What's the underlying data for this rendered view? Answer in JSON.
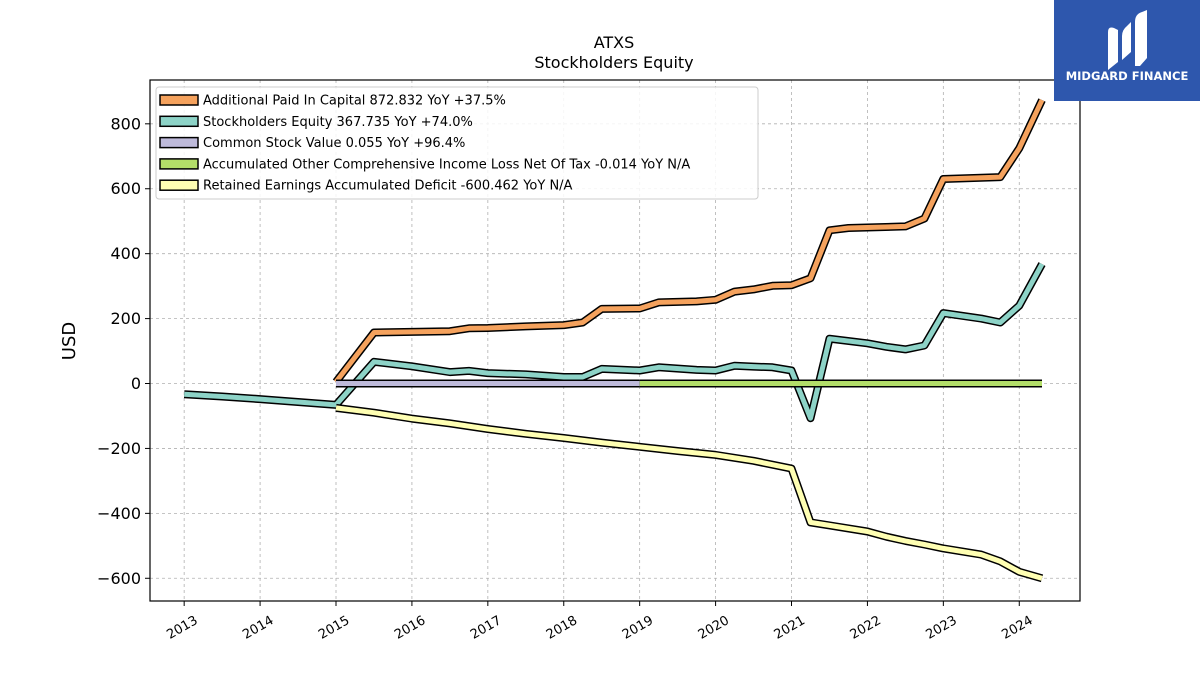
{
  "chart_data": {
    "type": "line",
    "title": "ATXS",
    "subtitle": "Stockholders  Equity",
    "ylabel": "USD",
    "xlabel": "",
    "xlim": [
      2012.55,
      2024.8
    ],
    "ylim": [
      -670,
      935
    ],
    "yticks": [
      -600,
      -400,
      -200,
      0,
      200,
      400,
      600,
      800
    ],
    "ytick_labels": [
      "−600",
      "−400",
      "−200",
      "0",
      "200",
      "400",
      "600",
      "800"
    ],
    "xticks": [
      2013,
      2014,
      2015,
      2016,
      2017,
      2018,
      2019,
      2020,
      2021,
      2022,
      2023,
      2024
    ],
    "xtick_labels": [
      "2013",
      "2014",
      "2015",
      "2016",
      "2017",
      "2018",
      "2019",
      "2020",
      "2021",
      "2022",
      "2023",
      "2024"
    ],
    "grid": true,
    "legend_position": "top-left",
    "series": [
      {
        "name": "Additional Paid In Capital  872.832 YoY +37.5%",
        "color": "#f5a25d",
        "points": [
          [
            2015.0,
            5
          ],
          [
            2015.5,
            157
          ],
          [
            2016.5,
            161
          ],
          [
            2016.75,
            170
          ],
          [
            2017.0,
            171
          ],
          [
            2017.5,
            176
          ],
          [
            2018.0,
            180
          ],
          [
            2018.25,
            188
          ],
          [
            2018.5,
            230
          ],
          [
            2019.0,
            231
          ],
          [
            2019.25,
            250
          ],
          [
            2019.75,
            253
          ],
          [
            2020.0,
            258
          ],
          [
            2020.25,
            283
          ],
          [
            2020.5,
            290
          ],
          [
            2020.75,
            301
          ],
          [
            2021.0,
            303
          ],
          [
            2021.25,
            324
          ],
          [
            2021.5,
            472
          ],
          [
            2021.75,
            479
          ],
          [
            2022.5,
            484
          ],
          [
            2022.75,
            508
          ],
          [
            2023.0,
            630
          ],
          [
            2023.75,
            636
          ],
          [
            2024.0,
            725
          ],
          [
            2024.3,
            873
          ]
        ]
      },
      {
        "name": "Stockholders Equity  367.735 YoY +74.0%",
        "color": "#8dd3c7",
        "points": [
          [
            2013.0,
            -33
          ],
          [
            2013.5,
            -40
          ],
          [
            2014.0,
            -48
          ],
          [
            2014.5,
            -57
          ],
          [
            2015.0,
            -66
          ],
          [
            2015.5,
            67
          ],
          [
            2016.0,
            53
          ],
          [
            2016.5,
            35
          ],
          [
            2016.75,
            39
          ],
          [
            2017.0,
            32
          ],
          [
            2017.5,
            28
          ],
          [
            2018.0,
            20
          ],
          [
            2018.25,
            20
          ],
          [
            2018.5,
            45
          ],
          [
            2019.0,
            40
          ],
          [
            2019.25,
            50
          ],
          [
            2019.75,
            42
          ],
          [
            2020.0,
            40
          ],
          [
            2020.25,
            55
          ],
          [
            2020.5,
            52
          ],
          [
            2020.75,
            50
          ],
          [
            2021.0,
            40
          ],
          [
            2021.25,
            -107
          ],
          [
            2021.5,
            138
          ],
          [
            2022.0,
            124
          ],
          [
            2022.25,
            113
          ],
          [
            2022.5,
            105
          ],
          [
            2022.75,
            117
          ],
          [
            2023.0,
            217
          ],
          [
            2023.5,
            200
          ],
          [
            2023.75,
            188
          ],
          [
            2024.0,
            240
          ],
          [
            2024.3,
            368
          ]
        ]
      },
      {
        "name": "Common Stock Value  0.055 YoY +96.4%",
        "color": "#bebada",
        "points": [
          [
            2015.0,
            0
          ],
          [
            2019.0,
            0
          ]
        ]
      },
      {
        "name": "Accumulated Other Comprehensive Income Loss Net Of Tax  -0.014 YoY N/A",
        "color": "#b3de69",
        "points": [
          [
            2019.0,
            0
          ],
          [
            2024.3,
            0
          ]
        ]
      },
      {
        "name": "Retained Earnings Accumulated Deficit  -600.462 YoY N/A",
        "color": "#ffffb3",
        "points": [
          [
            2015.0,
            -75
          ],
          [
            2015.5,
            -90
          ],
          [
            2016.0,
            -108
          ],
          [
            2016.5,
            -123
          ],
          [
            2017.0,
            -140
          ],
          [
            2017.5,
            -155
          ],
          [
            2018.0,
            -168
          ],
          [
            2018.5,
            -182
          ],
          [
            2019.0,
            -195
          ],
          [
            2019.5,
            -208
          ],
          [
            2020.0,
            -220
          ],
          [
            2020.5,
            -238
          ],
          [
            2021.0,
            -262
          ],
          [
            2021.25,
            -428
          ],
          [
            2021.5,
            -437
          ],
          [
            2022.0,
            -456
          ],
          [
            2022.25,
            -472
          ],
          [
            2022.5,
            -485
          ],
          [
            2022.75,
            -496
          ],
          [
            2023.0,
            -508
          ],
          [
            2023.5,
            -527
          ],
          [
            2023.75,
            -548
          ],
          [
            2024.0,
            -580
          ],
          [
            2024.3,
            -600
          ]
        ]
      }
    ]
  },
  "logo": {
    "text": "MIDGARD FINANCE",
    "background": "#2e57ad"
  }
}
